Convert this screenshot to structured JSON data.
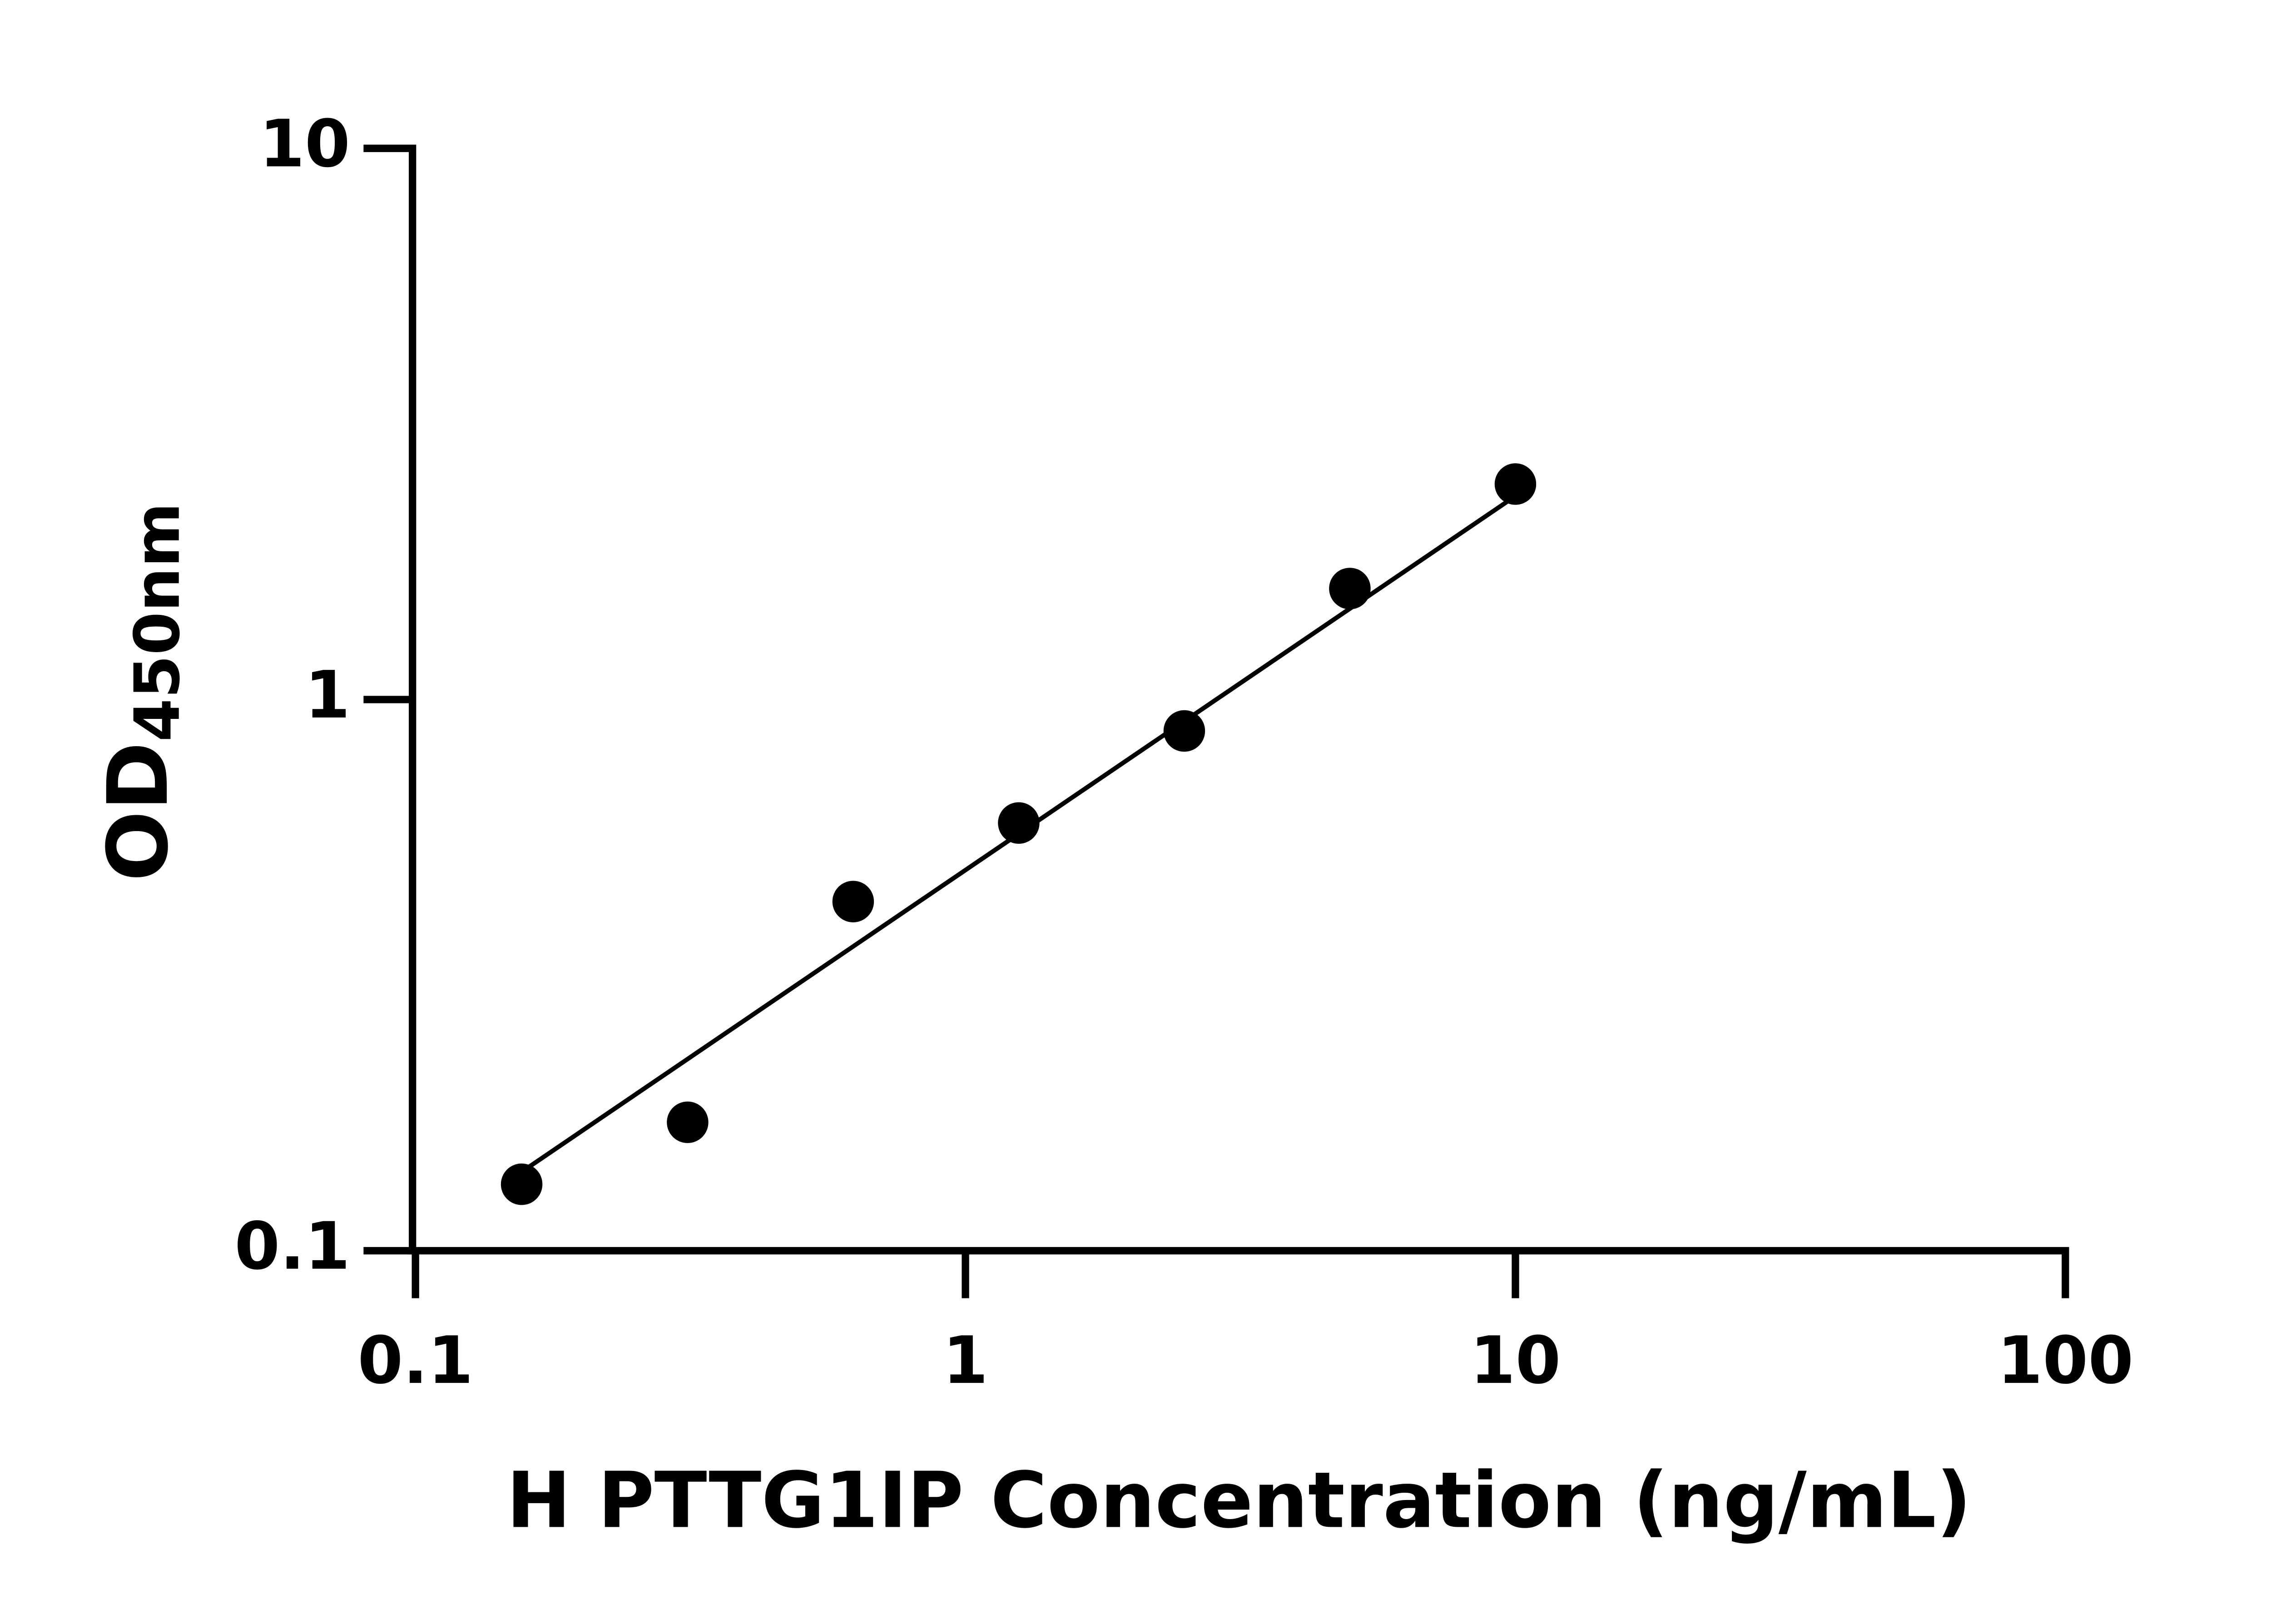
{
  "chart_data": {
    "type": "scatter",
    "xlabel": "H PTTG1IP Concentration (ng/mL)",
    "ylabel": [
      "OD",
      "450nm"
    ],
    "x": [
      0.156,
      0.3125,
      0.625,
      1.25,
      2.5,
      5,
      10
    ],
    "series": [
      {
        "color": "#000000",
        "values": [
          0.132,
          0.171,
          0.43,
          0.597,
          0.877,
          1.59,
          2.46
        ]
      }
    ],
    "fit_line": {
      "x": [
        0.156,
        10
      ],
      "y": [
        0.139,
        2.34
      ]
    },
    "xlim": [
      0.1,
      100
    ],
    "xticks": [
      0.1,
      1,
      10,
      100
    ],
    "ylim": [
      0.1,
      10
    ],
    "yticks": [
      0.1,
      1,
      10
    ],
    "xscale": "log",
    "yscale": "log",
    "grid": false
  }
}
